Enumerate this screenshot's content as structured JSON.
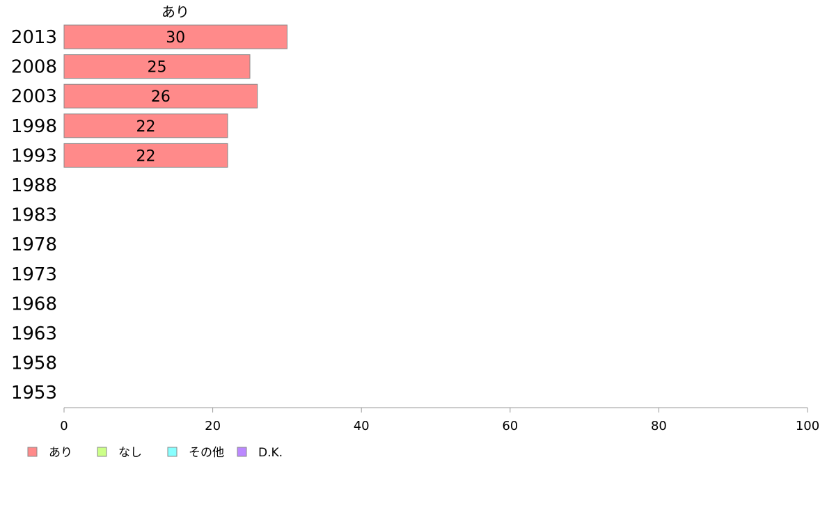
{
  "chart_data": {
    "type": "bar",
    "orientation": "horizontal",
    "stacked": true,
    "categories": [
      "2013",
      "2008",
      "2003",
      "1998",
      "1993",
      "1988",
      "1983",
      "1978",
      "1973",
      "1968",
      "1963",
      "1958",
      "1953"
    ],
    "series": [
      {
        "name": "あり",
        "color": "#ff8a8a",
        "values": [
          30,
          25,
          26,
          22,
          22,
          null,
          null,
          null,
          null,
          null,
          null,
          null,
          null
        ],
        "data_labels": [
          "30",
          "25",
          "26",
          "22",
          "22"
        ]
      },
      {
        "name": "なし",
        "color": "#ccff88",
        "values": [
          null,
          null,
          null,
          null,
          null,
          null,
          null,
          null,
          null,
          null,
          null,
          null,
          null
        ]
      },
      {
        "name": "その他",
        "color": "#88ffff",
        "values": [
          null,
          null,
          null,
          null,
          null,
          null,
          null,
          null,
          null,
          null,
          null,
          null,
          null
        ]
      },
      {
        "name": "D.K.",
        "color": "#bb88ff",
        "values": [
          null,
          null,
          null,
          null,
          null,
          null,
          null,
          null,
          null,
          null,
          null,
          null,
          null
        ]
      }
    ],
    "column_header": "あり",
    "xlim": [
      0,
      100
    ],
    "xticks": [
      "0",
      "20",
      "40",
      "60",
      "80",
      "100"
    ],
    "legend_position": "bottom-left",
    "grid": false
  }
}
